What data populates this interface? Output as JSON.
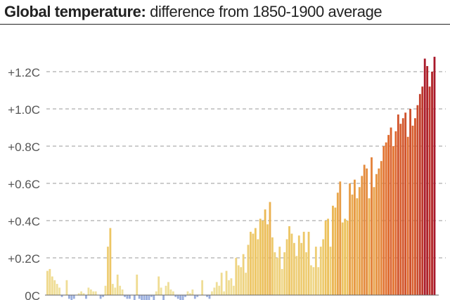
{
  "header": {
    "title_bold": "Global temperature:",
    "title_rest": "difference from 1850-1900 average"
  },
  "chart_data": {
    "type": "bar",
    "title": "Global temperature: difference from 1850-1900 average",
    "xlabel": "",
    "ylabel": "",
    "ylim": [
      0,
      1.3
    ],
    "y_ticks": [
      0,
      0.2,
      0.4,
      0.6,
      0.8,
      1.0,
      1.2
    ],
    "y_tick_labels": [
      "0C",
      "+0.2C",
      "+0.4C",
      "+0.6C",
      "+0.8C",
      "+1.0C",
      "+1.2C"
    ],
    "grid": true,
    "color_scale": [
      "#9aaede",
      "#f0e4a4",
      "#ecc058",
      "#e06a2c",
      "#a8182a"
    ],
    "values": [
      0.13,
      0.14,
      0.1,
      0.08,
      0.06,
      0.04,
      -0.01,
      0.0,
      0.08,
      -0.02,
      -0.03,
      -0.02,
      0.0,
      0.01,
      0.02,
      0.01,
      -0.02,
      0.04,
      0.03,
      0.02,
      0.02,
      0.0,
      -0.02,
      -0.01,
      0.05,
      0.26,
      0.36,
      0.06,
      0.04,
      0.11,
      0.05,
      0.03,
      -0.01,
      -0.02,
      -0.02,
      0.0,
      -0.03,
      0.11,
      -0.02,
      -0.03,
      -0.03,
      -0.04,
      -0.03,
      -0.01,
      -0.03,
      0.02,
      0.1,
      0.04,
      -0.03,
      0.05,
      0.07,
      0.03,
      0.02,
      -0.01,
      -0.02,
      -0.03,
      -0.03,
      -0.01,
      0.02,
      0.01,
      0.03,
      -0.02,
      -0.01,
      0.0,
      0.08,
      0.0,
      -0.01,
      -0.02,
      0.02,
      0.04,
      0.07,
      0.05,
      0.12,
      0.02,
      0.13,
      0.08,
      0.09,
      0.05,
      0.2,
      0.16,
      0.15,
      0.22,
      0.12,
      0.27,
      0.34,
      0.33,
      0.36,
      0.3,
      0.41,
      0.4,
      0.46,
      0.38,
      0.5,
      0.31,
      0.23,
      0.2,
      0.26,
      0.14,
      0.23,
      0.3,
      0.37,
      0.33,
      0.28,
      0.21,
      0.32,
      0.28,
      0.34,
      0.23,
      0.34,
      0.16,
      0.15,
      0.26,
      0.15,
      0.26,
      0.3,
      0.4,
      0.41,
      0.26,
      0.48,
      0.47,
      0.55,
      0.61,
      0.39,
      0.41,
      0.4,
      0.6,
      0.54,
      0.62,
      0.52,
      0.58,
      0.64,
      0.7,
      0.68,
      0.52,
      0.74,
      0.58,
      0.65,
      0.68,
      0.72,
      0.8,
      0.82,
      0.86,
      0.9,
      0.8,
      0.88,
      0.97,
      0.92,
      0.95,
      0.98,
      0.85,
      1.0,
      0.91,
      0.95,
      1.02,
      1.08,
      1.12,
      1.27,
      1.23,
      1.12,
      1.2,
      1.28
    ]
  }
}
